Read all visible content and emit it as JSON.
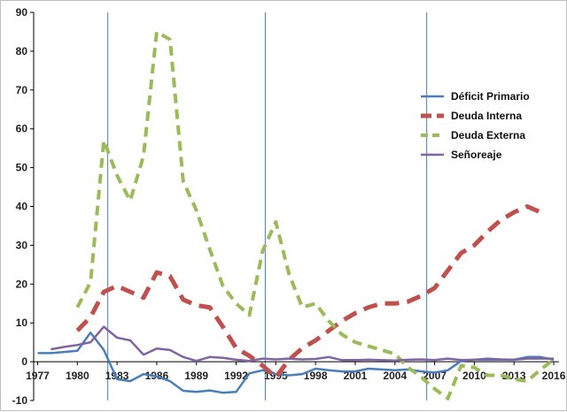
{
  "chart_data": {
    "type": "line",
    "x": [
      1977,
      1978,
      1979,
      1980,
      1981,
      1982,
      1983,
      1984,
      1985,
      1986,
      1987,
      1988,
      1989,
      1990,
      1991,
      1992,
      1993,
      1994,
      1995,
      1996,
      1997,
      1998,
      1999,
      2000,
      2001,
      2002,
      2003,
      2004,
      2005,
      2006,
      2007,
      2008,
      2009,
      2010,
      2011,
      2012,
      2013,
      2014,
      2015,
      2016
    ],
    "xticks": [
      "1977",
      "1980",
      "1983",
      "1986",
      "1989",
      "1992",
      "1995",
      "1998",
      "2001",
      "2004",
      "2007",
      "2010",
      "2013",
      "2016"
    ],
    "xtick_values": [
      1977,
      1980,
      1983,
      1986,
      1989,
      1992,
      1995,
      1998,
      2001,
      2004,
      2007,
      2010,
      2013,
      2016
    ],
    "ylim": [
      -10,
      90
    ],
    "yticks": [
      -10,
      0,
      10,
      20,
      30,
      40,
      50,
      60,
      70,
      80,
      90
    ],
    "xlim": [
      1976.7,
      2016.4
    ],
    "vlines": [
      1982.3,
      1994.2,
      2006.4
    ],
    "series": [
      {
        "name": "Déficit Primario",
        "color": "#4a7ebb",
        "dash": "solid",
        "width": 2.5,
        "values": [
          2.2,
          2.2,
          2.5,
          2.8,
          7.5,
          3.0,
          -4.5,
          -5.0,
          -3.2,
          -3.8,
          -5.0,
          -7.5,
          -7.8,
          -7.4,
          -8.0,
          -7.8,
          -3.0,
          -2.2,
          -3.2,
          -3.5,
          -3.2,
          -1.8,
          -2.2,
          -2.5,
          -2.5,
          -1.8,
          -2.0,
          -2.2,
          -2.0,
          -2.5,
          -2.8,
          -2.2,
          0.2,
          0.5,
          0.5,
          0.5,
          0.5,
          1.2,
          1.2,
          0.5
        ]
      },
      {
        "name": "Deuda Interna",
        "color": "#c0504d",
        "dash": "long",
        "width": 5,
        "values": [
          null,
          null,
          null,
          8.0,
          11.5,
          18.0,
          19.5,
          18.0,
          16.5,
          23.0,
          22.0,
          16.0,
          14.5,
          14.0,
          9.0,
          3.5,
          1.5,
          -1.0,
          -4.0,
          0.5,
          3.5,
          5.5,
          8.0,
          10.5,
          12.5,
          14.0,
          15.0,
          15.0,
          15.5,
          17.0,
          19.0,
          23.5,
          28.0,
          30.0,
          33.5,
          36.5,
          38.5,
          40.0,
          38.5,
          null
        ]
      },
      {
        "name": "Deuda Externa",
        "color": "#9bbb59",
        "dash": "medium",
        "width": 4,
        "values": [
          null,
          null,
          null,
          14.0,
          20.5,
          57.0,
          48.0,
          41.5,
          53.0,
          85.0,
          83.0,
          46.5,
          39.0,
          29.0,
          19.5,
          15.0,
          12.0,
          28.5,
          36.0,
          22.5,
          14.0,
          15.0,
          10.5,
          7.0,
          5.0,
          4.0,
          3.0,
          2.0,
          -1.5,
          -4.0,
          -7.0,
          -9.5,
          -1.0,
          -1.5,
          -3.5,
          -3.5,
          -4.5,
          -5.0,
          -2.0,
          0.5
        ]
      },
      {
        "name": "Señoreaje",
        "color": "#8064a2",
        "dash": "solid",
        "width": 2.5,
        "values": [
          null,
          3.2,
          3.8,
          4.3,
          5.0,
          9.0,
          6.2,
          5.5,
          1.8,
          3.4,
          3.0,
          1.2,
          0.2,
          1.2,
          1.0,
          0.5,
          0.2,
          0.8,
          0.6,
          0.8,
          0.6,
          0.7,
          1.2,
          0.4,
          0.4,
          0.5,
          0.4,
          0.3,
          0.5,
          0.6,
          0.4,
          0.8,
          0.4,
          0.5,
          0.8,
          0.6,
          0.5,
          0.8,
          0.8,
          0.8
        ]
      }
    ],
    "legend_position": "right",
    "grid": false
  }
}
